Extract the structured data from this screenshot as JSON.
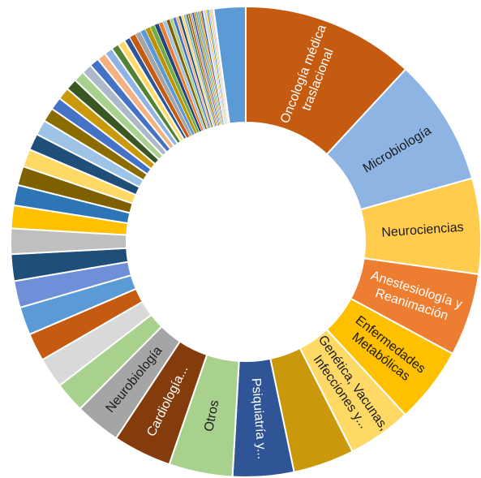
{
  "chart_data": {
    "type": "pie",
    "variant": "doughnut",
    "legend": "none",
    "slices": [
      {
        "label": "Oncología médica traslacional",
        "lines": [
          "Oncología médica",
          "traslacional"
        ],
        "value": 13.6,
        "color": "#C55A11",
        "text_color": "#ffffff"
      },
      {
        "label": "Microbiología",
        "lines": [
          "Microbiología"
        ],
        "value": 10.0,
        "color": "#8EB4E3",
        "text_color": "#1a1a1a"
      },
      {
        "label": "Neurociencias",
        "lines": [
          "Neurociencias"
        ],
        "value": 7.5,
        "color": "#FFCC4D",
        "text_color": "#1a1a1a"
      },
      {
        "label": "Anestesiología y Reanimación",
        "lines": [
          "Anestesiología y",
          "Reanimación"
        ],
        "value": 6.5,
        "color": "#ED7D31",
        "text_color": "#ffffff"
      },
      {
        "label": "Enfermedades Metabólicas",
        "lines": [
          "Enfermedades",
          "Metabólicas"
        ],
        "value": 6.0,
        "color": "#FFC000",
        "text_color": "#1a1a1a"
      },
      {
        "label": "Genética, Vacunas, Infecciones y...",
        "lines": [
          "Genética, Vacunas,",
          "Infecciones y..."
        ],
        "value": 5.0,
        "color": "#FFD966",
        "text_color": "#1a1a1a"
      },
      {
        "label": "",
        "lines": [],
        "value": 4.8,
        "color": "#C9990B",
        "text_color": "#1a1a1a"
      },
      {
        "label": "Psiquiatría y...",
        "lines": [
          "Psiquiatría y..."
        ],
        "value": 4.8,
        "color": "#2F5597",
        "text_color": "#ffffff"
      },
      {
        "label": "Otros",
        "lines": [
          "Otros"
        ],
        "value": 5.0,
        "color": "#A9D18E",
        "text_color": "#1a1a1a"
      },
      {
        "label": "Cardiología...",
        "lines": [
          "Cardiología..."
        ],
        "value": 4.6,
        "color": "#843C0C",
        "text_color": "#ffffff"
      },
      {
        "label": "Neurobiología",
        "lines": [
          "Neurobiología"
        ],
        "value": 3.6,
        "color": "#A5A5A5",
        "text_color": "#1a1a1a"
      },
      {
        "label": "",
        "lines": [],
        "value": 2.4,
        "color": "#A9D18E",
        "text_color": "#1a1a1a"
      },
      {
        "label": "",
        "lines": [],
        "value": 2.4,
        "color": "#D9D9D9",
        "text_color": "#1a1a1a"
      },
      {
        "label": "",
        "lines": [],
        "value": 2.2,
        "color": "#C55A11",
        "text_color": "#1a1a1a"
      },
      {
        "label": "",
        "lines": [],
        "value": 2.2,
        "color": "#5B9BD5",
        "text_color": "#1a1a1a"
      },
      {
        "label": "",
        "lines": [],
        "value": 2.1,
        "color": "#6F8FD8",
        "text_color": "#1a1a1a"
      },
      {
        "label": "",
        "lines": [],
        "value": 2.1,
        "color": "#1F4E79",
        "text_color": "#1a1a1a"
      },
      {
        "label": "",
        "lines": [],
        "value": 2.0,
        "color": "#BFBFBF",
        "text_color": "#1a1a1a"
      },
      {
        "label": "",
        "lines": [],
        "value": 1.8,
        "color": "#FFC000",
        "text_color": "#1a1a1a"
      },
      {
        "label": "",
        "lines": [],
        "value": 1.6,
        "color": "#2E75B6",
        "text_color": "#1a1a1a"
      },
      {
        "label": "",
        "lines": [],
        "value": 1.5,
        "color": "#7F6000",
        "text_color": "#1a1a1a"
      },
      {
        "label": "",
        "lines": [],
        "value": 1.4,
        "color": "#FFD966",
        "text_color": "#1a1a1a"
      },
      {
        "label": "",
        "lines": [],
        "value": 1.3,
        "color": "#1F4E79",
        "text_color": "#1a1a1a"
      },
      {
        "label": "",
        "lines": [],
        "value": 1.2,
        "color": "#9DC3E6",
        "text_color": "#1a1a1a"
      },
      {
        "label": "",
        "lines": [],
        "value": 1.1,
        "color": "#8B6C00",
        "text_color": "#1a1a1a"
      },
      {
        "label": "",
        "lines": [],
        "value": 1.0,
        "color": "#4472C4",
        "text_color": "#1a1a1a"
      },
      {
        "label": "",
        "lines": [],
        "value": 0.95,
        "color": "#C9990B",
        "text_color": "#1a1a1a"
      },
      {
        "label": "",
        "lines": [],
        "value": 0.9,
        "color": "#385723",
        "text_color": "#1a1a1a"
      },
      {
        "label": "",
        "lines": [],
        "value": 0.85,
        "color": "#A9D18E",
        "text_color": "#1a1a1a"
      },
      {
        "label": "",
        "lines": [],
        "value": 0.8,
        "color": "#ADB9CA",
        "text_color": "#1a1a1a"
      },
      {
        "label": "",
        "lines": [],
        "value": 0.75,
        "color": "#4472C4",
        "text_color": "#1a1a1a"
      },
      {
        "label": "",
        "lines": [],
        "value": 0.7,
        "color": "#F4B183",
        "text_color": "#1a1a1a"
      },
      {
        "label": "",
        "lines": [],
        "value": 0.65,
        "color": "#8EB4E3",
        "text_color": "#1a1a1a"
      },
      {
        "label": "",
        "lines": [],
        "value": 0.6,
        "color": "#548235",
        "text_color": "#1a1a1a"
      },
      {
        "label": "",
        "lines": [],
        "value": 0.55,
        "color": "#FFD966",
        "text_color": "#1a1a1a"
      },
      {
        "label": "",
        "lines": [],
        "value": 0.5,
        "color": "#2F5597",
        "text_color": "#1a1a1a"
      },
      {
        "label": "",
        "lines": [],
        "value": 0.48,
        "color": "#C55A11",
        "text_color": "#1a1a1a"
      },
      {
        "label": "",
        "lines": [],
        "value": 0.45,
        "color": "#A5A5A5",
        "text_color": "#1a1a1a"
      },
      {
        "label": "",
        "lines": [],
        "value": 0.42,
        "color": "#5B9BD5",
        "text_color": "#1a1a1a"
      },
      {
        "label": "",
        "lines": [],
        "value": 0.4,
        "color": "#BF9000",
        "text_color": "#1a1a1a"
      },
      {
        "label": "",
        "lines": [],
        "value": 0.38,
        "color": "#70AD47",
        "text_color": "#1a1a1a"
      },
      {
        "label": "",
        "lines": [],
        "value": 0.35,
        "color": "#264478",
        "text_color": "#1a1a1a"
      },
      {
        "label": "",
        "lines": [],
        "value": 0.33,
        "color": "#ED7D31",
        "text_color": "#1a1a1a"
      },
      {
        "label": "",
        "lines": [],
        "value": 0.3,
        "color": "#9DC3E6",
        "text_color": "#1a1a1a"
      },
      {
        "label": "",
        "lines": [],
        "value": 0.28,
        "color": "#7F6000",
        "text_color": "#1a1a1a"
      },
      {
        "label": "",
        "lines": [],
        "value": 0.26,
        "color": "#A9D18E",
        "text_color": "#1a1a1a"
      },
      {
        "label": "",
        "lines": [],
        "value": 0.24,
        "color": "#4472C4",
        "text_color": "#1a1a1a"
      },
      {
        "label": "",
        "lines": [],
        "value": 0.22,
        "color": "#F4B183",
        "text_color": "#1a1a1a"
      },
      {
        "label": "",
        "lines": [],
        "value": 0.2,
        "color": "#1F4E79",
        "text_color": "#1a1a1a"
      },
      {
        "label": "",
        "lines": [],
        "value": 0.2,
        "color": "#FFD966",
        "text_color": "#1a1a1a"
      },
      {
        "label": "",
        "lines": [],
        "value": 0.18,
        "color": "#8EB4E3",
        "text_color": "#1a1a1a"
      },
      {
        "label": "",
        "lines": [],
        "value": 0.18,
        "color": "#548235",
        "text_color": "#1a1a1a"
      },
      {
        "label": "",
        "lines": [],
        "value": 0.16,
        "color": "#C55A11",
        "text_color": "#1a1a1a"
      },
      {
        "label": "",
        "lines": [],
        "value": 0.16,
        "color": "#A5A5A5",
        "text_color": "#1a1a1a"
      },
      {
        "label": "",
        "lines": [],
        "value": 0.15,
        "color": "#2F5597",
        "text_color": "#1a1a1a"
      },
      {
        "label": "",
        "lines": [],
        "value": 0.15,
        "color": "#BF9000",
        "text_color": "#1a1a1a"
      },
      {
        "label": "",
        "lines": [],
        "value": 0.14,
        "color": "#5B9BD5",
        "text_color": "#1a1a1a"
      },
      {
        "label": "",
        "lines": [],
        "value": 0.14,
        "color": "#70AD47",
        "text_color": "#1a1a1a"
      },
      {
        "label": "",
        "lines": [],
        "value": 0.13,
        "color": "#ED7D31",
        "text_color": "#1a1a1a"
      },
      {
        "label": "",
        "lines": [],
        "value": 0.13,
        "color": "#264478",
        "text_color": "#1a1a1a"
      },
      {
        "label": "",
        "lines": [],
        "value": 0.12,
        "color": "#D9D9D9",
        "text_color": "#1a1a1a"
      },
      {
        "label": "",
        "lines": [],
        "value": 0.12,
        "color": "#9DC3E6",
        "text_color": "#1a1a1a"
      },
      {
        "label": "",
        "lines": [],
        "value": 0.11,
        "color": "#FFC000",
        "text_color": "#1a1a1a"
      },
      {
        "label": "",
        "lines": [],
        "value": 0.11,
        "color": "#4472C4",
        "text_color": "#1a1a1a"
      },
      {
        "label": "",
        "lines": [],
        "value": 0.1,
        "color": "#A9D18E",
        "text_color": "#1a1a1a"
      },
      {
        "label": "",
        "lines": [],
        "value": 0.1,
        "color": "#F4B183",
        "text_color": "#1a1a1a"
      },
      {
        "label": "",
        "lines": [],
        "value": 0.1,
        "color": "#BFBFBF",
        "text_color": "#1a1a1a"
      },
      {
        "label": "",
        "lines": [],
        "value": 0.1,
        "color": "#8EB4E3",
        "text_color": "#1a1a1a"
      },
      {
        "label": "",
        "lines": [],
        "value": 2.5,
        "color": "#5B9BD5",
        "text_color": "#1a1a1a"
      }
    ]
  }
}
